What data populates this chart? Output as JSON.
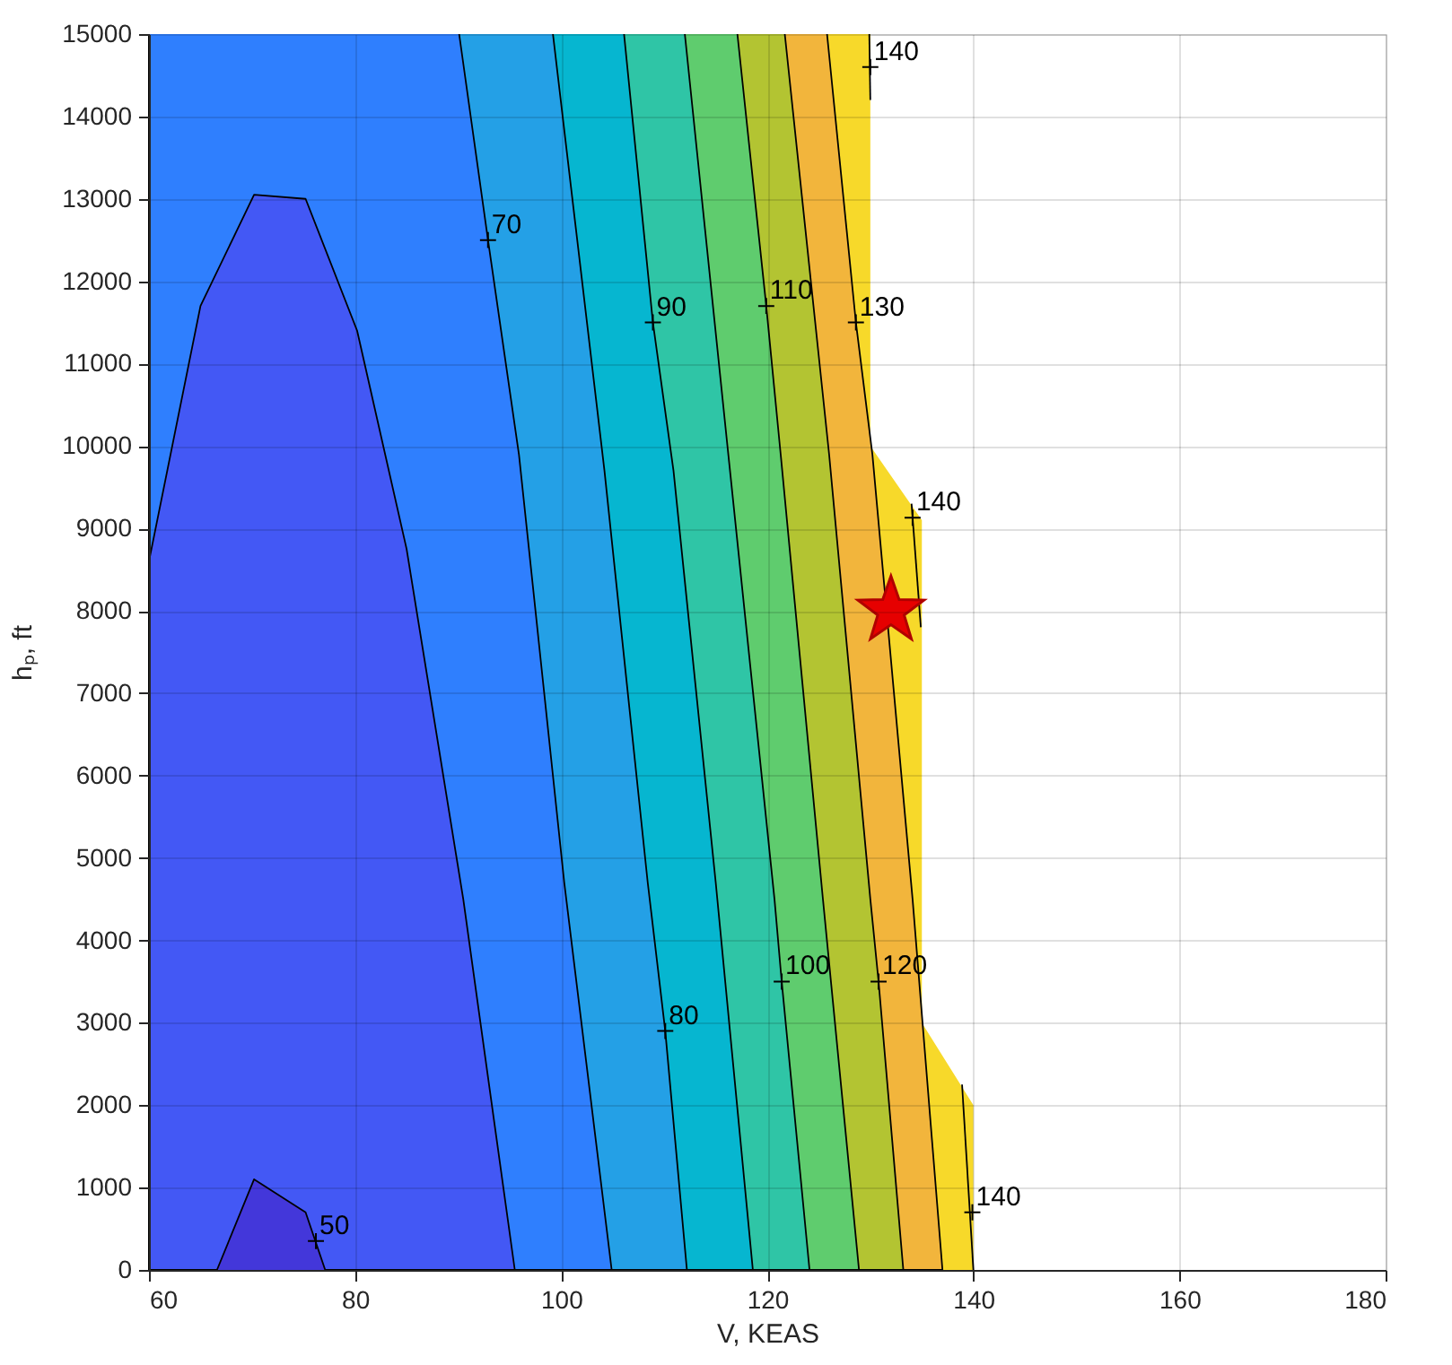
{
  "chart_data": {
    "type": "area",
    "xlabel": "V, KEAS",
    "ylabel": "hₚ, ft",
    "xlim": [
      60,
      180
    ],
    "ylim": [
      0,
      15000
    ],
    "xticks": [
      60,
      80,
      100,
      120,
      140,
      160,
      180
    ],
    "yticks": [
      0,
      1000,
      2000,
      3000,
      4000,
      5000,
      6000,
      7000,
      8000,
      9000,
      10000,
      11000,
      12000,
      13000,
      14000,
      15000
    ],
    "grid": true,
    "series": [
      {
        "line_style": "none",
        "color": "#f7d92a",
        "x": [
          130,
          130,
          135,
          135,
          140,
          140,
          60,
          60
        ],
        "values": [
          15000,
          10000,
          9100,
          3000,
          2000,
          0,
          0,
          15000
        ]
      },
      {
        "line_style": "solid",
        "color": "#f2b53c",
        "x": [
          125.8,
          128.6,
          130.2,
          134.1,
          137.0,
          60,
          60
        ],
        "values": [
          15000,
          11500,
          9900,
          4500,
          0,
          0,
          15000
        ]
      },
      {
        "line_style": "solid",
        "color": "#b3c432",
        "x": [
          121.7,
          126.0,
          130.0,
          130.8,
          133.2,
          60,
          60
        ],
        "values": [
          15000,
          9900,
          4500,
          3500,
          0,
          0,
          15000
        ]
      },
      {
        "line_style": "solid",
        "color": "#5fcc6e",
        "x": [
          117.1,
          119.9,
          121.3,
          125.4,
          128.9,
          60,
          60
        ],
        "values": [
          15000,
          11700,
          9900,
          4500,
          0,
          0,
          15000
        ]
      },
      {
        "line_style": "solid",
        "color": "#2fc5a6",
        "x": [
          112.0,
          116.3,
          120.7,
          121.4,
          124.1,
          60,
          60
        ],
        "values": [
          15000,
          9800,
          4500,
          3500,
          0,
          0,
          15000
        ]
      },
      {
        "line_style": "solid",
        "color": "#06b6d0",
        "x": [
          106.1,
          108.9,
          110.9,
          115.0,
          118.6,
          60,
          60
        ],
        "values": [
          15000,
          11500,
          9700,
          4700,
          0,
          0,
          15000
        ]
      },
      {
        "line_style": "solid",
        "color": "#24a0e6",
        "x": [
          99.2,
          104.2,
          108.4,
          110.1,
          112.2,
          60,
          60
        ],
        "values": [
          15000,
          9700,
          4700,
          2900,
          0,
          0,
          15000
        ]
      },
      {
        "line_style": "solid",
        "color": "#2f7ffe",
        "x": [
          90.1,
          92.9,
          95.9,
          100.3,
          104.9,
          60,
          60
        ],
        "values": [
          15000,
          12500,
          9900,
          4700,
          0,
          0,
          15000
        ]
      },
      {
        "line_style": "solid",
        "color": "#4358f5",
        "x": [
          60,
          65,
          70.2,
          75.2,
          80.2,
          85,
          90.5,
          95.5,
          60
        ],
        "values": [
          8600,
          11700,
          13050,
          13000,
          11400,
          8750,
          4500,
          0,
          0
        ]
      },
      {
        "line_style": "solid",
        "color": "#4337da",
        "x": [
          66.6,
          70.2,
          75.2,
          77.1
        ],
        "values": [
          0,
          1100,
          700,
          0
        ]
      },
      {
        "type": "line",
        "line_style": "solid",
        "color": "#000000",
        "x": [
          129.9,
          130.0
        ],
        "values": [
          15000,
          14200
        ]
      },
      {
        "type": "line",
        "line_style": "solid",
        "color": "#000000",
        "x": [
          134.0,
          134.9
        ],
        "values": [
          9300,
          7800
        ]
      },
      {
        "type": "line",
        "line_style": "solid",
        "color": "#000000",
        "x": [
          138.9,
          140.0
        ],
        "values": [
          2250,
          0
        ]
      },
      {
        "type": "scatter",
        "marker": "star",
        "color": "#e60000",
        "x": [
          132
        ],
        "values": [
          8000
        ]
      }
    ],
    "annotations": [
      {
        "text": "50",
        "x": 76.2,
        "y": 350
      },
      {
        "text": "70",
        "x": 92.9,
        "y": 12500
      },
      {
        "text": "80",
        "x": 110.1,
        "y": 2900
      },
      {
        "text": "90",
        "x": 108.9,
        "y": 11500
      },
      {
        "text": "100",
        "x": 121.4,
        "y": 3500
      },
      {
        "text": "110",
        "x": 119.9,
        "y": 11700
      },
      {
        "text": "120",
        "x": 130.8,
        "y": 3500
      },
      {
        "text": "130",
        "x": 128.6,
        "y": 11500
      },
      {
        "text": "140",
        "x": 130.0,
        "y": 14600
      },
      {
        "text": "140",
        "x": 134.1,
        "y": 9130
      },
      {
        "text": "140",
        "x": 139.9,
        "y": 700
      }
    ]
  }
}
